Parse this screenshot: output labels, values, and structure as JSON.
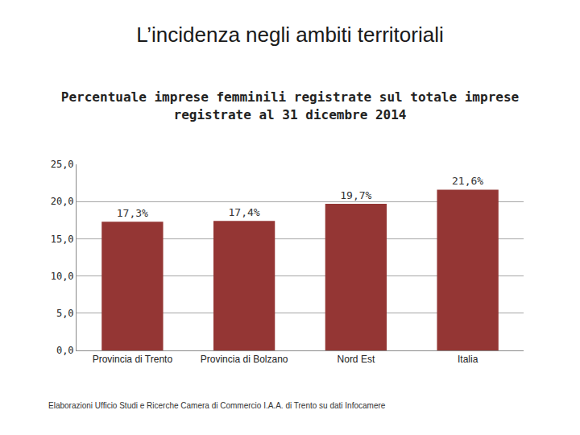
{
  "chart_data": {
    "type": "bar",
    "title": "L’incidenza negli ambiti territoriali",
    "subtitle": "Percentuale imprese femminili registrate sul totale imprese registrate al 31 dicembre 2014",
    "categories": [
      "Provincia di Trento",
      "Provincia di Bolzano",
      "Nord Est",
      "Italia"
    ],
    "values": [
      17.3,
      17.4,
      19.7,
      21.6
    ],
    "value_labels": [
      "17,3%",
      "17,4%",
      "19,7%",
      "21,6%"
    ],
    "color": "#943634",
    "ylim": [
      0,
      25
    ],
    "yticks": [
      {
        "value": 0,
        "label": "0,0"
      },
      {
        "value": 5,
        "label": "5,0"
      },
      {
        "value": 10,
        "label": "10,0"
      },
      {
        "value": 15,
        "label": "15,0"
      },
      {
        "value": 20,
        "label": "20,0"
      },
      {
        "value": 25,
        "label": "25,0"
      }
    ],
    "grid": true,
    "data_labels": true,
    "annotations": [
      "Elaborazioni Ufficio Studi e Ricerche Camera di Commercio I.A.A. di Trento su dati Infocamere"
    ]
  }
}
